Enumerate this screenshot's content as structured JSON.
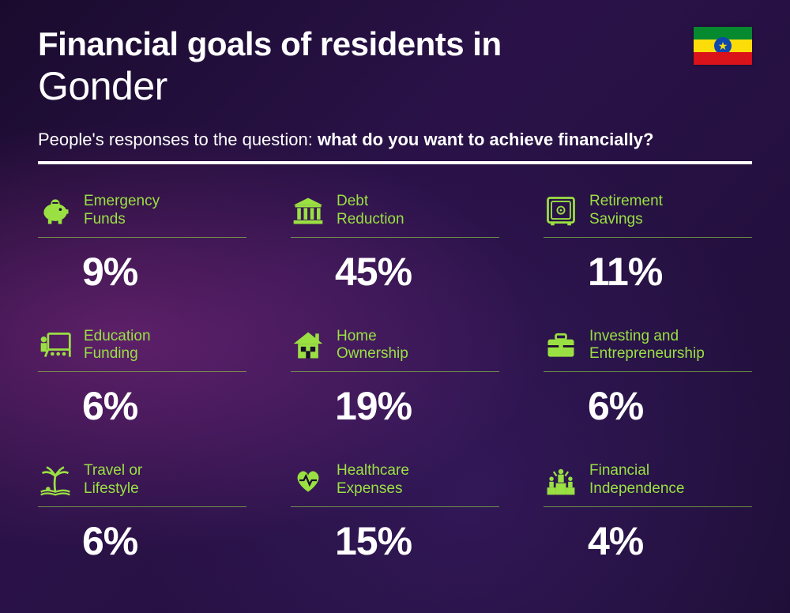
{
  "colors": {
    "accent": "#9ae042",
    "text": "#ffffff",
    "divider": "#ffffff",
    "underline": "rgba(154,224,66,0.6)",
    "background_gradient": [
      "#1a0b2e",
      "#2a1248",
      "#1f0f38"
    ]
  },
  "typography": {
    "title_fontsize": 42,
    "city_fontsize": 50,
    "subtitle_fontsize": 22,
    "label_fontsize": 19,
    "value_fontsize": 50
  },
  "layout": {
    "columns": 3,
    "rows": 3,
    "column_gap": 56,
    "row_gap": 42
  },
  "header": {
    "title_prefix": "Financial goals of residents in",
    "city": "Gonder",
    "subtitle_prefix": "People's responses to the question: ",
    "subtitle_bold": "what do you want to achieve financially?"
  },
  "flag": {
    "country": "Ethiopia",
    "stripes": [
      "#078930",
      "#fcdd09",
      "#da121a"
    ],
    "emblem_bg": "#0f47af",
    "emblem_star": "#fcdd09"
  },
  "items": [
    {
      "icon": "piggy-bank",
      "label_l1": "Emergency",
      "label_l2": "Funds",
      "value": "9%"
    },
    {
      "icon": "bank",
      "label_l1": "Debt",
      "label_l2": "Reduction",
      "value": "45%"
    },
    {
      "icon": "safe",
      "label_l1": "Retirement",
      "label_l2": "Savings",
      "value": "11%"
    },
    {
      "icon": "education",
      "label_l1": "Education",
      "label_l2": "Funding",
      "value": "6%"
    },
    {
      "icon": "house",
      "label_l1": "Home",
      "label_l2": "Ownership",
      "value": "19%"
    },
    {
      "icon": "briefcase",
      "label_l1": "Investing and",
      "label_l2": "Entrepreneurship",
      "value": "6%"
    },
    {
      "icon": "palm",
      "label_l1": "Travel or",
      "label_l2": "Lifestyle",
      "value": "6%"
    },
    {
      "icon": "heart",
      "label_l1": "Healthcare",
      "label_l2": "Expenses",
      "value": "15%"
    },
    {
      "icon": "podium",
      "label_l1": "Financial",
      "label_l2": "Independence",
      "value": "4%"
    }
  ]
}
